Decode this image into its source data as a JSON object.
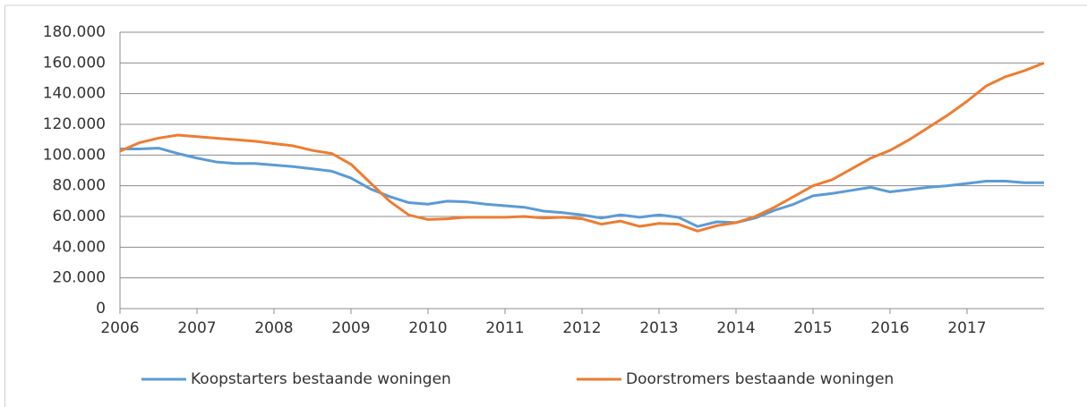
{
  "chart_data": {
    "type": "line",
    "x": [
      2006.0,
      2006.25,
      2006.5,
      2006.75,
      2007.0,
      2007.25,
      2007.5,
      2007.75,
      2008.0,
      2008.25,
      2008.5,
      2008.75,
      2009.0,
      2009.25,
      2009.5,
      2009.75,
      2010.0,
      2010.25,
      2010.5,
      2010.75,
      2011.0,
      2011.25,
      2011.5,
      2011.75,
      2012.0,
      2012.25,
      2012.5,
      2012.75,
      2013.0,
      2013.25,
      2013.5,
      2013.75,
      2014.0,
      2014.25,
      2014.5,
      2014.75,
      2015.0,
      2015.25,
      2015.5,
      2015.75,
      2016.0,
      2016.25,
      2016.5,
      2016.75,
      2017.0,
      2017.25,
      2017.5,
      2017.75,
      2018.0
    ],
    "series": [
      {
        "name": "Koopstarters bestaande woningen",
        "color": "#5b9bd5",
        "values": [
          104000,
          104000,
          104500,
          101000,
          98000,
          95500,
          94500,
          94500,
          93500,
          92500,
          91000,
          89500,
          85000,
          78000,
          73000,
          69000,
          68000,
          70000,
          69500,
          68000,
          67000,
          66000,
          63500,
          62500,
          61000,
          59000,
          61000,
          59500,
          61000,
          59500,
          53500,
          56500,
          56000,
          59000,
          64000,
          68000,
          73500,
          75000,
          77000,
          79000,
          76000,
          77500,
          79000,
          80000,
          81500,
          83000,
          83000,
          82000,
          82000
        ]
      },
      {
        "name": "Doorstromers bestaande woningen",
        "color": "#ed7d31",
        "values": [
          102500,
          108000,
          111000,
          113000,
          112000,
          111000,
          110000,
          109000,
          107500,
          106000,
          103000,
          101000,
          94000,
          82000,
          70000,
          61000,
          58000,
          58500,
          59500,
          59500,
          59500,
          60000,
          59000,
          59500,
          58500,
          55000,
          57000,
          53500,
          55500,
          55000,
          50500,
          54000,
          56000,
          60000,
          66000,
          73000,
          80000,
          84000,
          91000,
          98000,
          103000,
          110000,
          118000,
          126000,
          135000,
          145000,
          151000,
          155000,
          160000
        ]
      }
    ],
    "xlim": [
      2006,
      2018
    ],
    "xticks": [
      2006,
      2007,
      2008,
      2009,
      2010,
      2011,
      2012,
      2013,
      2014,
      2015,
      2016,
      2017
    ],
    "ylim": [
      0,
      180000
    ],
    "yticks": [
      0,
      {
        "value": 20000,
        "label": "20.000"
      },
      {
        "value": 40000,
        "label": "40.000"
      },
      {
        "value": 60000,
        "label": "60.000"
      },
      {
        "value": 80000,
        "label": "80.000"
      },
      {
        "value": 100000,
        "label": "100.000"
      },
      {
        "value": 120000,
        "label": "120.000"
      },
      {
        "value": 140000,
        "label": "140.000"
      },
      {
        "value": 160000,
        "label": "160.000"
      },
      {
        "value": 180000,
        "label": "180.000"
      }
    ],
    "grid": true,
    "legend": "bottom"
  }
}
